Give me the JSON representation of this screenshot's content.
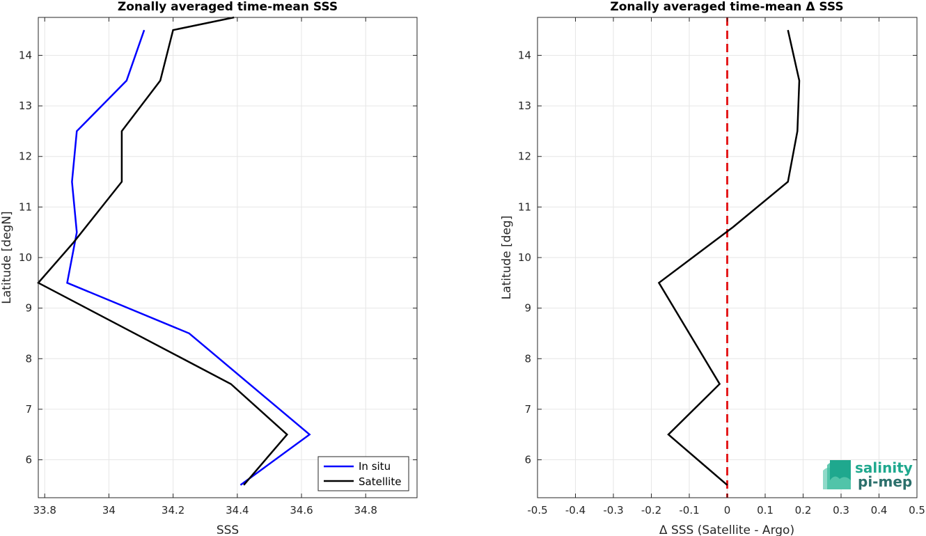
{
  "chart_data": [
    {
      "type": "line",
      "title": "Zonally averaged time-mean SSS",
      "xlabel": "SSS",
      "ylabel": "Latitude [degN]",
      "xlim": [
        33.78,
        34.96
      ],
      "ylim": [
        5.25,
        14.75
      ],
      "xticks": [
        33.8,
        34,
        34.2,
        34.4,
        34.6,
        34.8
      ],
      "xtick_labels": [
        "33.8",
        "34",
        "34.2",
        "34.4",
        "34.6",
        "34.8"
      ],
      "yticks": [
        6,
        7,
        8,
        9,
        10,
        11,
        12,
        13,
        14
      ],
      "ytick_labels": [
        "6",
        "7",
        "8",
        "9",
        "10",
        "11",
        "12",
        "13",
        "14"
      ],
      "grid": true,
      "legend_position": "bottom-right",
      "series": [
        {
          "name": "In situ",
          "color": "#0000ff",
          "x": [
            34.41,
            34.625,
            34.25,
            33.87,
            33.9,
            33.885,
            33.9,
            34.055,
            34.11
          ],
          "y": [
            5.5,
            6.5,
            8.5,
            9.5,
            10.5,
            11.5,
            12.5,
            13.5,
            14.5
          ]
        },
        {
          "name": "Satellite",
          "color": "#000000",
          "x": [
            34.42,
            34.555,
            34.38,
            34.05,
            33.78,
            33.89,
            34.04,
            34.04,
            34.16,
            34.2,
            34.39
          ],
          "y": [
            5.5,
            6.5,
            7.5,
            8.6,
            9.5,
            10.3,
            11.5,
            12.5,
            13.5,
            14.5,
            14.75
          ]
        }
      ]
    },
    {
      "type": "line",
      "title": "Zonally averaged time-mean Δ SSS",
      "xlabel": "Δ SSS (Satellite - Argo)",
      "ylabel": "Latitude [deg]",
      "xlim": [
        -0.5,
        0.5
      ],
      "ylim": [
        5.25,
        14.75
      ],
      "xticks": [
        -0.5,
        -0.4,
        -0.3,
        -0.2,
        -0.1,
        0,
        0.1,
        0.2,
        0.3,
        0.4,
        0.5
      ],
      "xtick_labels": [
        "-0.5",
        "-0.4",
        "-0.3",
        "-0.2",
        "-0.1",
        "0",
        "0.1",
        "0.2",
        "0.3",
        "0.4",
        "0.5"
      ],
      "yticks": [
        6,
        7,
        8,
        9,
        10,
        11,
        12,
        13,
        14
      ],
      "ytick_labels": [
        "6",
        "7",
        "8",
        "9",
        "10",
        "11",
        "12",
        "13",
        "14"
      ],
      "grid": true,
      "zero_line": {
        "x": 0,
        "color": "#e41a1c",
        "style": "dashed"
      },
      "series": [
        {
          "color": "#000000",
          "x": [
            0,
            -0.155,
            -0.02,
            -0.18,
            0.015,
            0.16,
            0.185,
            0.19,
            0.16
          ],
          "y": [
            5.5,
            6.5,
            7.5,
            9.5,
            10.6,
            11.5,
            12.5,
            13.5,
            14.5
          ]
        }
      ]
    }
  ],
  "logo": {
    "line1": "salinity",
    "line2": "pi-mep",
    "colors": [
      "#1fa88e",
      "#2b6f6b"
    ]
  }
}
